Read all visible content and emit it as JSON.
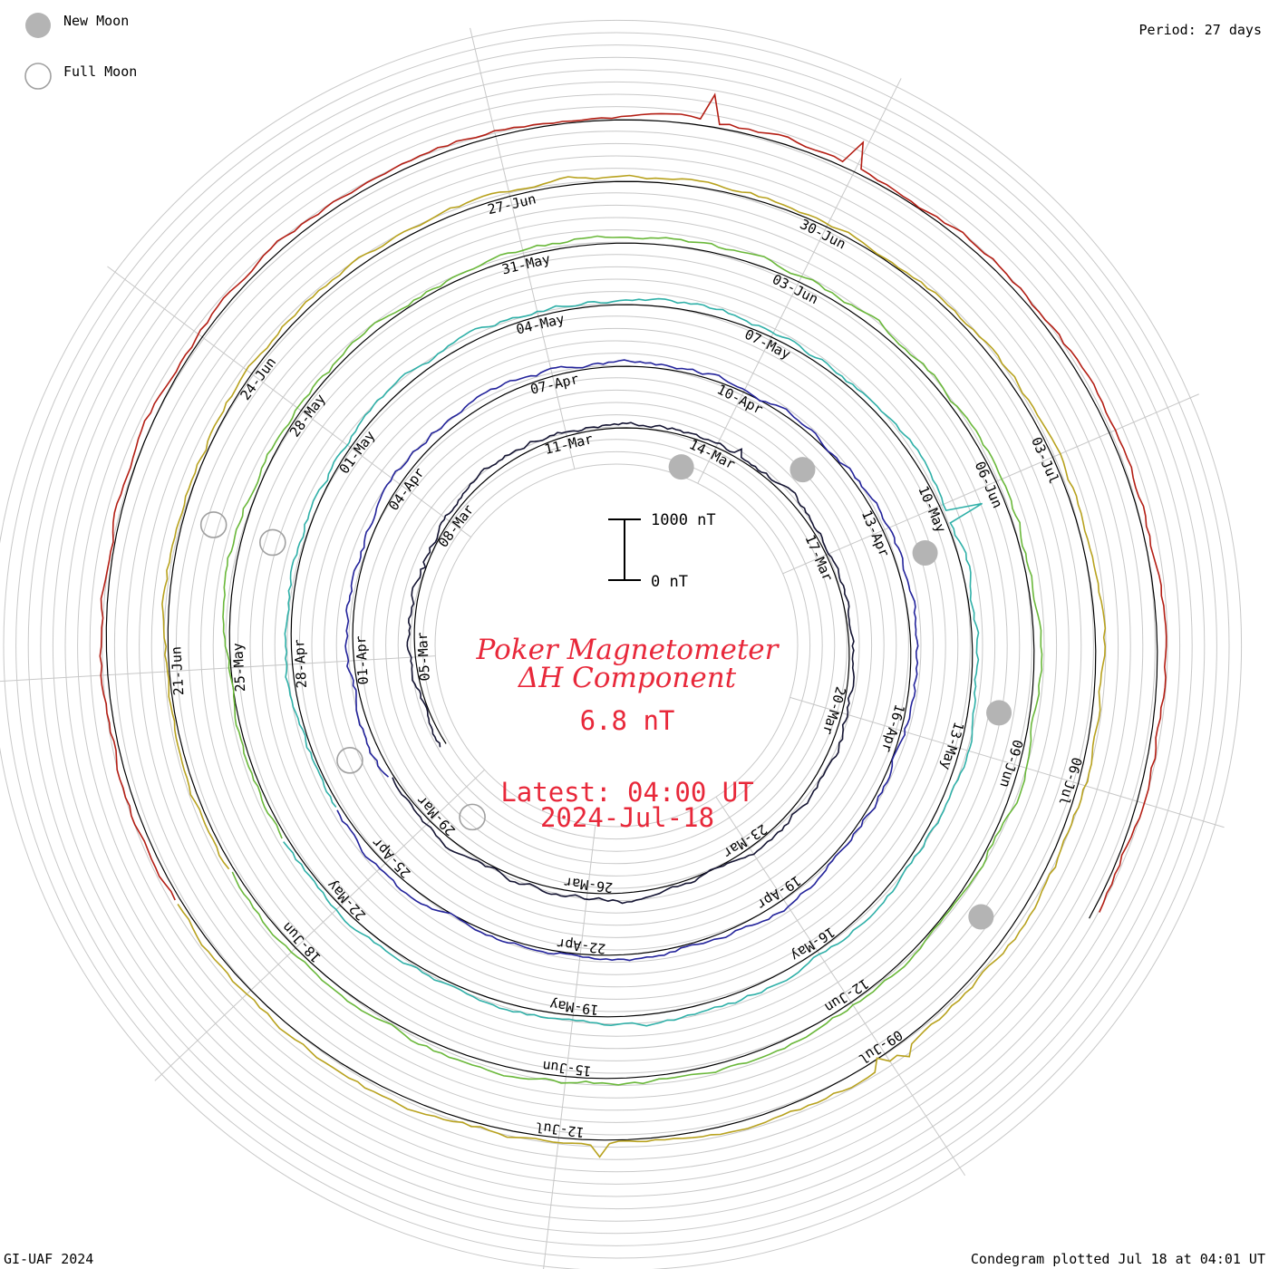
{
  "legend": {
    "new_moon": "New Moon",
    "full_moon": "Full Moon"
  },
  "period": "Period: 27 days",
  "scale": {
    "top_label": "1000 nT",
    "bottom_label": "0 nT"
  },
  "title_line1": "Poker Magnetometer",
  "title_line2": "ΔH Component",
  "current_value": "6.8 nT",
  "latest_time": "Latest: 04:00 UT",
  "latest_date": "2024-Jul-18",
  "footer_left": "GI-UAF 2024",
  "footer_right": "Condegram plotted Jul 18 at 04:01 UT",
  "colors": {
    "moon_new": "#b4b4b4",
    "moon_full_stroke": "#a0a0a0",
    "grid": "#c8c8c8",
    "title": "#e8283a"
  },
  "chart_data": {
    "type": "line",
    "subtype": "condegram-spiral",
    "period_days": 27,
    "value_scale_nT": [
      0,
      1000
    ],
    "start_date": "2024-03-03",
    "end_date": "2024-07-18",
    "cycles": [
      {
        "color": "#141432",
        "labels": [
          "05-Mar",
          "08-Mar",
          "11-Mar",
          "14-Mar",
          "17-Mar",
          "20-Mar",
          "23-Mar",
          "26-Mar",
          "29-Mar"
        ]
      },
      {
        "color": "#23239b",
        "labels": [
          "01-Apr",
          "04-Apr",
          "07-Apr",
          "10-Apr",
          "13-Apr",
          "16-Apr",
          "19-Apr",
          "22-Apr",
          "25-Apr"
        ]
      },
      {
        "color": "#2fb0a8",
        "labels": [
          "28-Apr",
          "01-May",
          "04-May",
          "07-May",
          "10-May",
          "13-May",
          "16-May",
          "19-May",
          "22-May"
        ]
      },
      {
        "color": "#6ab83a",
        "labels": [
          "25-May",
          "28-May",
          "31-May",
          "03-Jun",
          "06-Jun",
          "09-Jun",
          "12-Jun",
          "15-Jun",
          "18-Jun"
        ]
      },
      {
        "color": "#b8a21e",
        "labels": [
          "21-Jun",
          "24-Jun",
          "27-Jun",
          "30-Jun",
          "03-Jul",
          "06-Jul",
          "09-Jul",
          "12-Jul"
        ]
      },
      {
        "color": "#b41e14",
        "labels": []
      }
    ],
    "moons": [
      {
        "phase": "new",
        "day": 10.5
      },
      {
        "phase": "full",
        "day": 25.5
      },
      {
        "phase": "new",
        "day": 39.5
      },
      {
        "phase": "full",
        "day": 54.5
      },
      {
        "phase": "new",
        "day": 68.5
      },
      {
        "phase": "full",
        "day": 84.5
      },
      {
        "phase": "new",
        "day": 97.5
      },
      {
        "phase": "full",
        "day": 111.5
      },
      {
        "phase": "new",
        "day": 126.5
      }
    ]
  }
}
